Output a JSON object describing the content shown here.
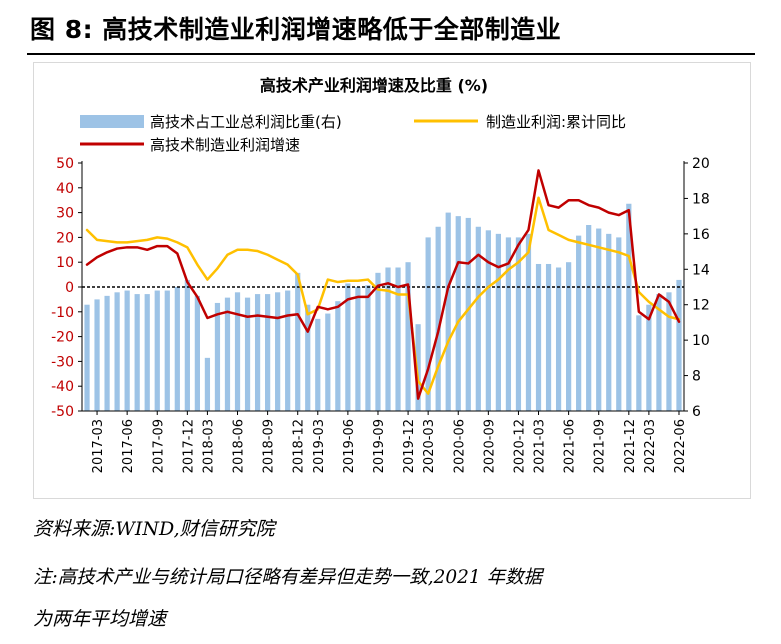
{
  "page": {
    "figure_title": "图 8:  高技术制造业利润增速略低于全部制造业",
    "source": "资料来源:WIND,财信研究院",
    "note_line1": "注:高技术产业与统计局口径略有差异但走势一致,2021 年数据",
    "note_line2": "为两年平均增速"
  },
  "colors": {
    "bars": "#9dc3e6",
    "line_red": "#c00000",
    "line_yellow": "#ffc000",
    "axis": "#000000",
    "frame": "#d9d9d9"
  },
  "chart_data": {
    "type": "bar+line",
    "title": "高技术产业利润增速及比重 (%)",
    "legend_position": "top",
    "grid": false,
    "left_axis": {
      "ylim": [
        -50,
        50
      ],
      "ticks": [
        50,
        40,
        30,
        20,
        10,
        0,
        -10,
        -20,
        -30,
        -40,
        -50
      ],
      "color": "#c00000"
    },
    "right_axis": {
      "ylim": [
        6,
        20
      ],
      "ticks": [
        20,
        18,
        16,
        14,
        12,
        10,
        8,
        6
      ]
    },
    "x_tick_labels": [
      "2017-03",
      "2017-06",
      "2017-09",
      "2017-12",
      "2018-03",
      "2018-06",
      "2018-09",
      "2018-12",
      "2019-03",
      "2019-06",
      "2019-09",
      "2019-12",
      "2020-03",
      "2020-06",
      "2020-09",
      "2020-12",
      "2021-03",
      "2021-06",
      "2021-09",
      "2021-12",
      "2022-03",
      "2022-06"
    ],
    "months": [
      "2017-02",
      "2017-03",
      "2017-04",
      "2017-05",
      "2017-06",
      "2017-07",
      "2017-08",
      "2017-09",
      "2017-10",
      "2017-11",
      "2017-12",
      "2018-02",
      "2018-03",
      "2018-04",
      "2018-05",
      "2018-06",
      "2018-07",
      "2018-08",
      "2018-09",
      "2018-10",
      "2018-11",
      "2018-12",
      "2019-02",
      "2019-03",
      "2019-04",
      "2019-05",
      "2019-06",
      "2019-07",
      "2019-08",
      "2019-09",
      "2019-10",
      "2019-11",
      "2019-12",
      "2020-02",
      "2020-03",
      "2020-04",
      "2020-05",
      "2020-06",
      "2020-07",
      "2020-08",
      "2020-09",
      "2020-10",
      "2020-11",
      "2020-12",
      "2021-02",
      "2021-03",
      "2021-04",
      "2021-05",
      "2021-06",
      "2021-07",
      "2021-08",
      "2021-09",
      "2021-10",
      "2021-11",
      "2021-12",
      "2022-02",
      "2022-03",
      "2022-04",
      "2022-05",
      "2022-06"
    ],
    "series": [
      {
        "name": "高技术占工业总利润比重(右)",
        "type": "bar",
        "axis": "right",
        "values": [
          12.0,
          12.3,
          12.5,
          12.7,
          12.8,
          12.6,
          12.6,
          12.8,
          12.8,
          13.0,
          13.4,
          12.5,
          9.0,
          12.1,
          12.4,
          12.7,
          12.4,
          12.6,
          12.6,
          12.7,
          12.8,
          13.8,
          12.0,
          11.2,
          11.5,
          12.2,
          13.2,
          13.0,
          13.1,
          13.8,
          14.1,
          14.1,
          14.4,
          10.9,
          15.8,
          16.4,
          17.2,
          17.0,
          16.9,
          16.4,
          16.2,
          16.0,
          15.8,
          15.8,
          16.0,
          14.3,
          14.3,
          14.1,
          14.4,
          15.9,
          16.5,
          16.3,
          16.0,
          15.8,
          17.7,
          11.4,
          12.0,
          12.6,
          12.7,
          13.4
        ]
      },
      {
        "name": "制造业利润:累计同比",
        "type": "line",
        "axis": "left",
        "values": [
          23.0,
          19.0,
          18.5,
          18.0,
          18.0,
          18.5,
          19.0,
          20.0,
          19.5,
          18.0,
          16.0,
          9.0,
          3.0,
          7.5,
          13.0,
          15.0,
          15.0,
          14.5,
          13.0,
          11.0,
          9.0,
          5.0,
          -11.0,
          -9.0,
          3.0,
          2.0,
          2.5,
          2.5,
          3.0,
          -1.0,
          -1.5,
          -3.0,
          -3.0,
          -38.0,
          -43.0,
          -32.0,
          -22.0,
          -14.0,
          -9.0,
          -4.0,
          0.0,
          3.0,
          7.0,
          10.0,
          14.0,
          36.0,
          23.0,
          21.0,
          19.0,
          18.0,
          17.0,
          16.0,
          15.0,
          14.0,
          12.5,
          -2.0,
          -6.0,
          -9.0,
          -12.0,
          -13.0
        ]
      },
      {
        "name": "高技术制造业利润增速",
        "type": "line",
        "axis": "left",
        "values": [
          9.0,
          12.0,
          14.0,
          15.5,
          16.0,
          16.0,
          15.0,
          16.5,
          16.5,
          13.5,
          2.0,
          -4.0,
          -12.5,
          -11.0,
          -10.0,
          -11.0,
          -12.0,
          -11.5,
          -12.0,
          -12.5,
          -11.5,
          -11.0,
          -18.0,
          -8.0,
          -9.0,
          -8.0,
          -5.0,
          -4.0,
          -4.0,
          0.5,
          1.5,
          0.0,
          1.0,
          -45.0,
          -33.0,
          -18.0,
          0.0,
          10.0,
          9.5,
          13.0,
          10.0,
          8.0,
          9.5,
          17.0,
          23.0,
          47.0,
          33.0,
          32.0,
          35.0,
          35.0,
          33.0,
          32.0,
          30.0,
          29.0,
          31.0,
          -10.0,
          -13.0,
          -3.0,
          -6.0,
          -14.0
        ]
      }
    ]
  }
}
